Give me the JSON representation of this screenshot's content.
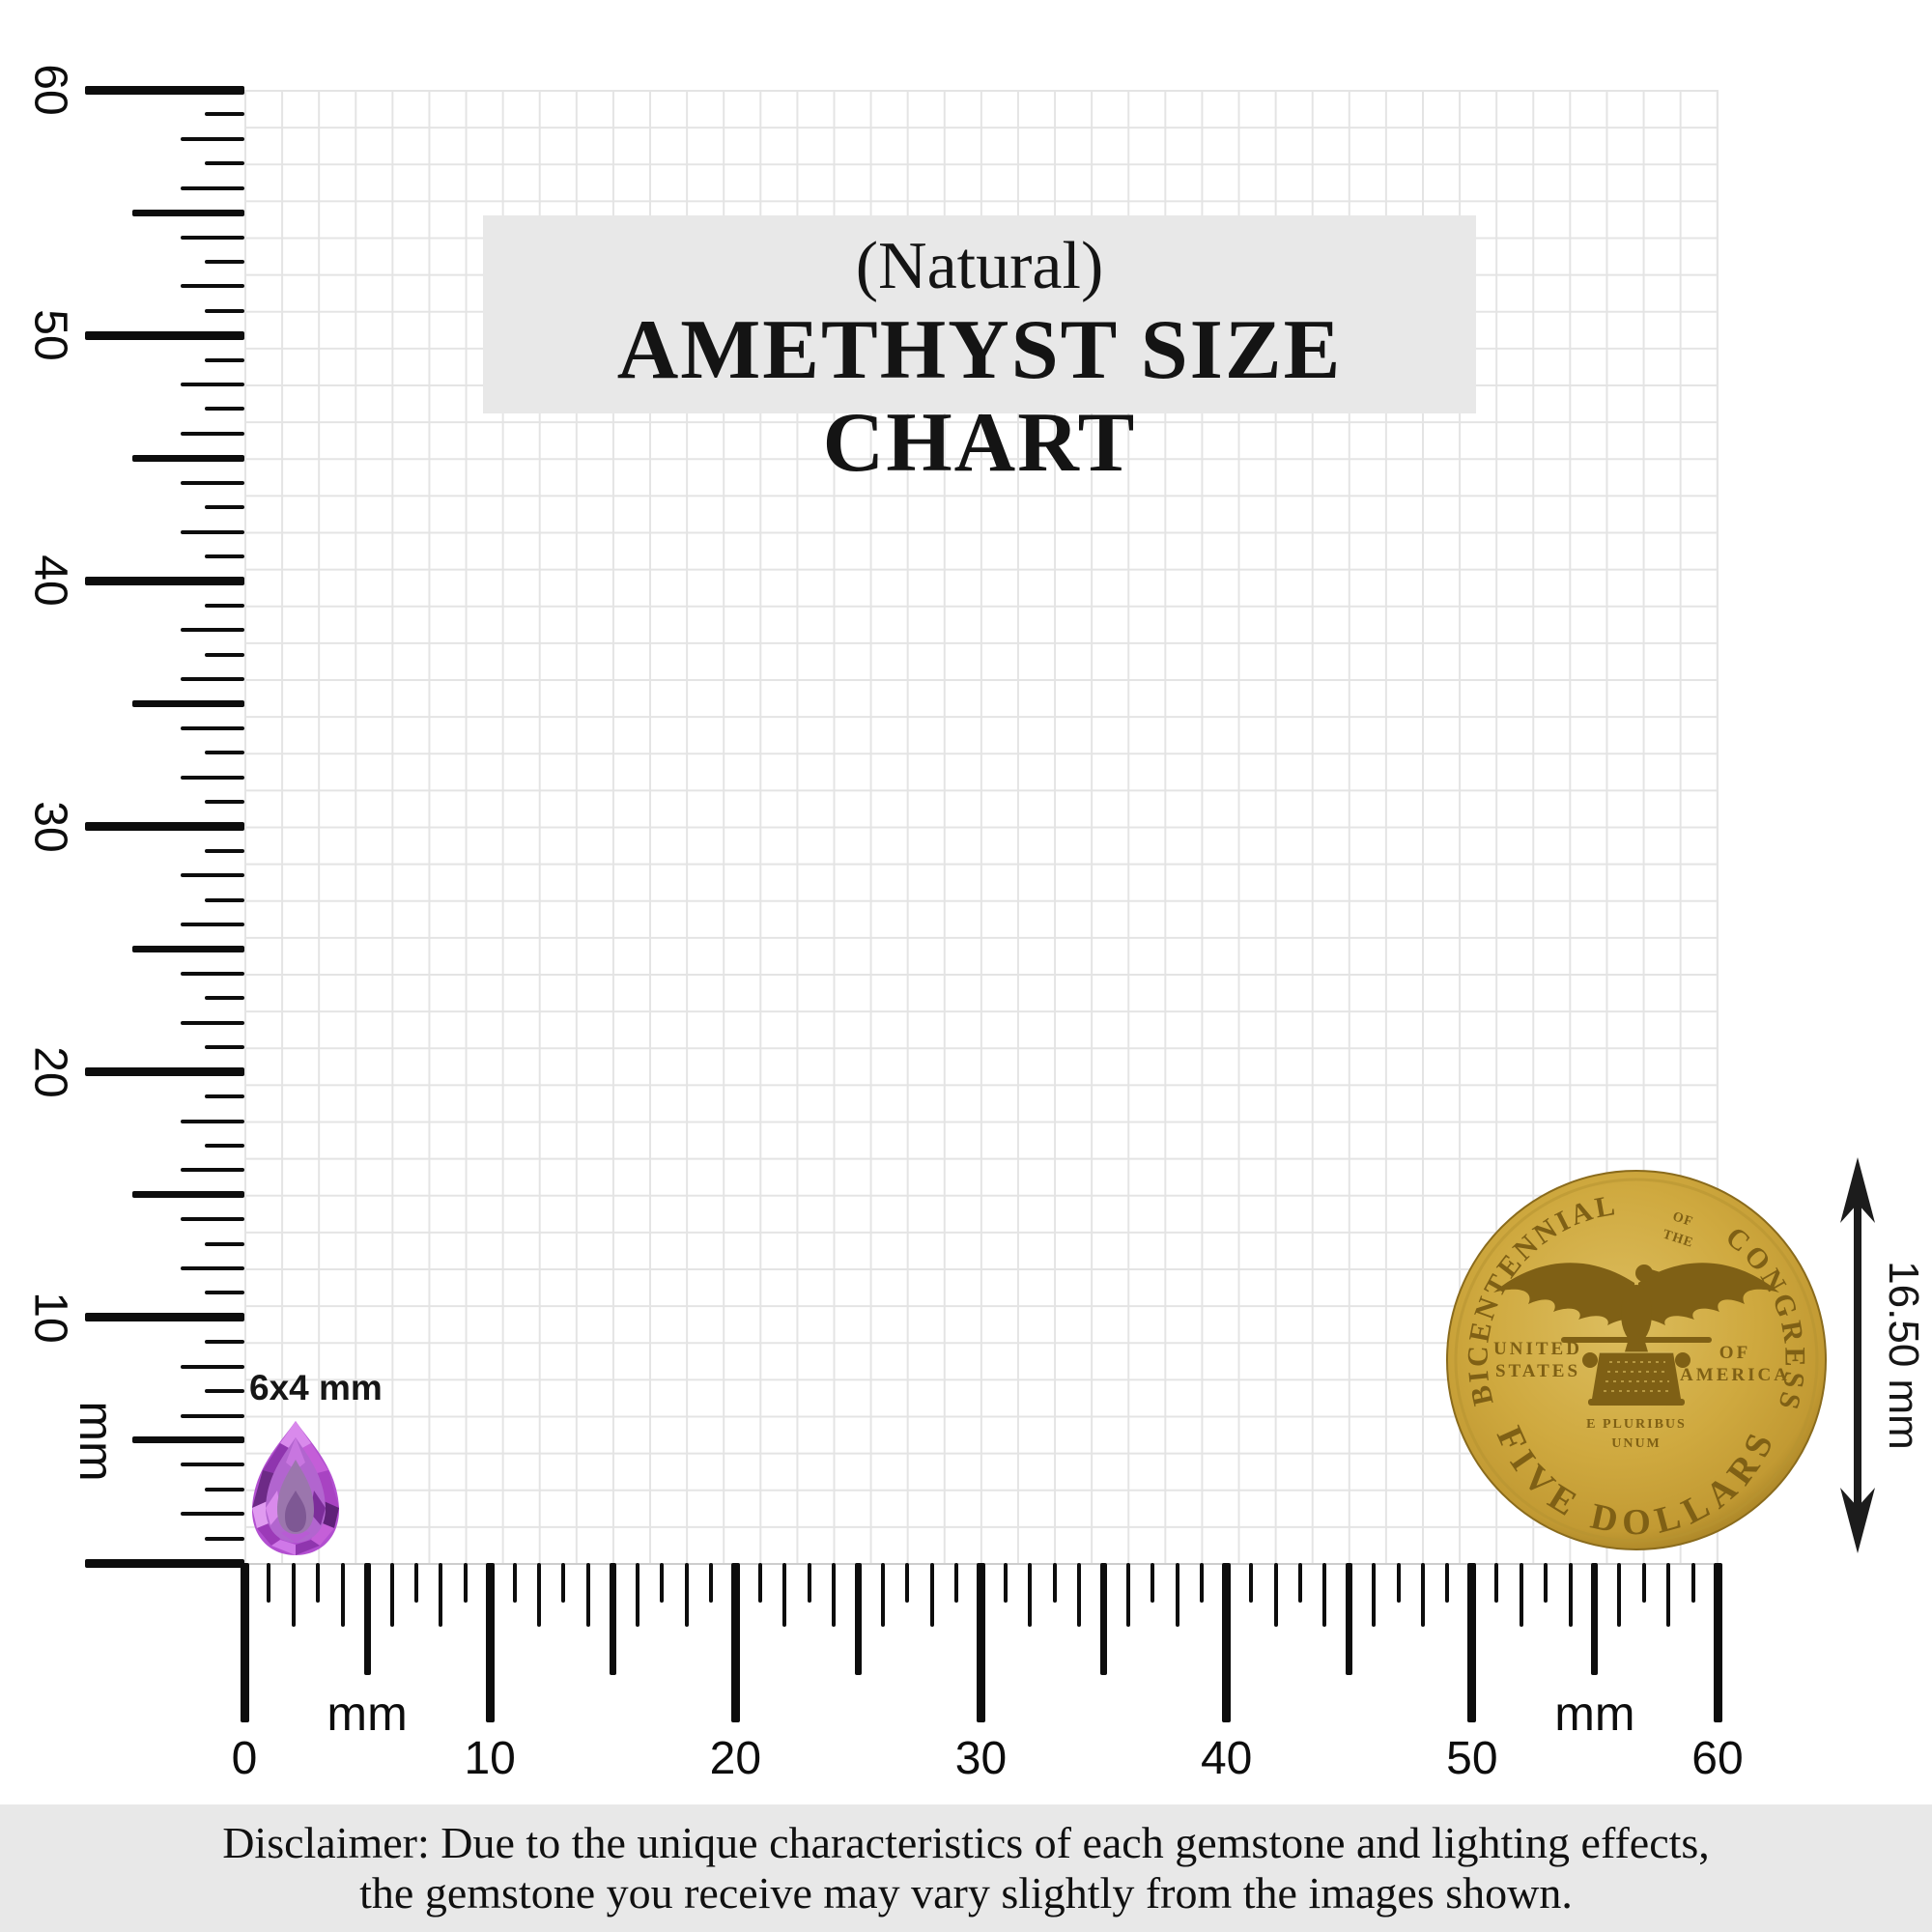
{
  "title": {
    "line1": "(Natural)",
    "line2": "AMETHYST SIZE CHART"
  },
  "rulers": {
    "unit_label": "mm",
    "vertical": {
      "labels": [
        "10",
        "20",
        "30",
        "40",
        "50",
        "60"
      ]
    },
    "horizontal": {
      "labels": [
        "0",
        "10",
        "20",
        "30",
        "40",
        "50",
        "60"
      ]
    }
  },
  "gem": {
    "size_label": "6x4 mm",
    "shape": "pear-cut-amethyst",
    "colors": {
      "bright": "#c55fd8",
      "mid": "#a843c2",
      "dark": "#6d2a86",
      "table": "#9b76ad",
      "highlight": "#e09bf0"
    }
  },
  "coin": {
    "arc_left": "BICENTENNIAL",
    "arc_small_1": "OF",
    "arc_small_2": "THE",
    "arc_right": "CONGRESS",
    "left_line1": "UNITED",
    "left_line2": "STATES",
    "right_line1": "OF",
    "right_line2": "AMERICA",
    "motto_line1": "E PLURIBUS",
    "motto_line2": "UNUM",
    "bottom_arc": "FIVE DOLLARS",
    "diameter_label": "16.50 mm",
    "colors": {
      "gold_light": "#dcbd5e",
      "gold_mid": "#cfa93f",
      "gold_edge": "#a07c22",
      "relief": "#7f6015"
    }
  },
  "disclaimer": {
    "line1": "Disclaimer: Due to the unique characteristics of each gemstone and lighting effects,",
    "line2": "the gemstone you receive may vary slightly from the images shown."
  }
}
